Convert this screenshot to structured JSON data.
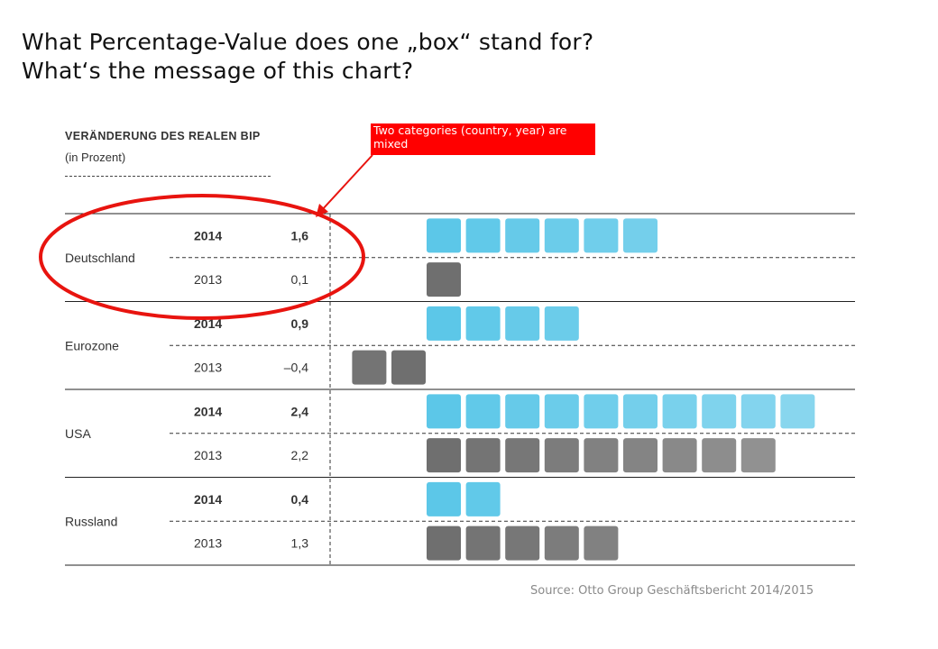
{
  "slide": {
    "question_1": "What Percentage-Value does one „box“ stand for?",
    "question_2": "What‘s the message of this chart?",
    "annotation": "Two categories (country, year) are mixed",
    "source": "Source: Otto Group Geschäftsbericht 2014/2015"
  },
  "chart_data": {
    "type": "bar",
    "title": "VERÄNDERUNG DES REALEN BIP",
    "subtitle": "(in Prozent)",
    "categories": [
      "Deutschland",
      "Eurozone",
      "USA",
      "Russland"
    ],
    "series": [
      {
        "name": "2014",
        "labels": [
          "1,6",
          "0,9",
          "2,4",
          "0,4"
        ],
        "values": [
          1.6,
          0.9,
          2.4,
          0.4
        ],
        "boxes": [
          6,
          4,
          10,
          2
        ],
        "color": "#5cc7e8"
      },
      {
        "name": "2013",
        "labels": [
          "0,1",
          "–0,4",
          "2,2",
          "1,3"
        ],
        "values": [
          0.1,
          -0.4,
          2.2,
          1.3
        ],
        "boxes": [
          1,
          -2,
          9,
          5
        ],
        "color": "#6f6f6f"
      }
    ],
    "highlight": {
      "shape": "ellipse",
      "color": "#e8140f",
      "target": "Deutschland"
    }
  }
}
